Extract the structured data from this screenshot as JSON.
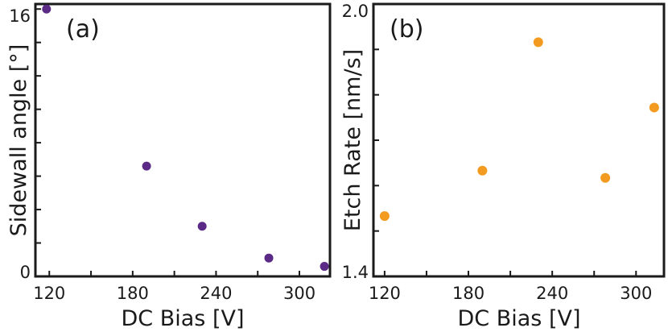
{
  "chart_data": [
    {
      "type": "scatter",
      "panel_label": "(a)",
      "xlabel": "DC Bias [V]",
      "ylabel": "Sidewall angle [°]",
      "xlim": [
        110,
        322
      ],
      "ylim": [
        0,
        16.3
      ],
      "xticks": [
        120,
        150,
        180,
        210,
        240,
        270,
        300
      ],
      "xtick_labels": [
        "120",
        "",
        "180",
        "",
        "240",
        "",
        "300"
      ],
      "yticks": [
        0,
        2,
        4,
        6,
        8,
        10,
        12,
        14,
        16
      ],
      "ytick_labels": [
        "0",
        "",
        "",
        "",
        "",
        "",
        "",
        "",
        "16"
      ],
      "grid": false,
      "color": "#5b2a86",
      "series": [
        {
          "x": [
            118,
            190,
            230,
            278,
            318
          ],
          "y": [
            16.0,
            6.6,
            3.0,
            1.1,
            0.6
          ]
        }
      ]
    },
    {
      "type": "scatter",
      "panel_label": "(b)",
      "xlabel": "DC Bias [V]",
      "ylabel": "Etch Rate [nm/s]",
      "xlim": [
        112,
        320
      ],
      "ylim": [
        1.4,
        2.0
      ],
      "xticks": [
        120,
        150,
        180,
        210,
        240,
        270,
        300
      ],
      "xtick_labels": [
        "120",
        "",
        "180",
        "",
        "240",
        "",
        "300"
      ],
      "yticks": [
        1.4,
        1.5,
        1.6,
        1.7,
        1.8,
        1.9,
        2.0
      ],
      "ytick_labels": [
        "1.4",
        "",
        "",
        "",
        "",
        "",
        "2.0"
      ],
      "grid": false,
      "color": "#f39a21",
      "series": [
        {
          "x": [
            120,
            190,
            230,
            278,
            313
          ],
          "y": [
            1.533,
            1.633,
            1.916,
            1.617,
            1.772
          ]
        }
      ]
    }
  ]
}
